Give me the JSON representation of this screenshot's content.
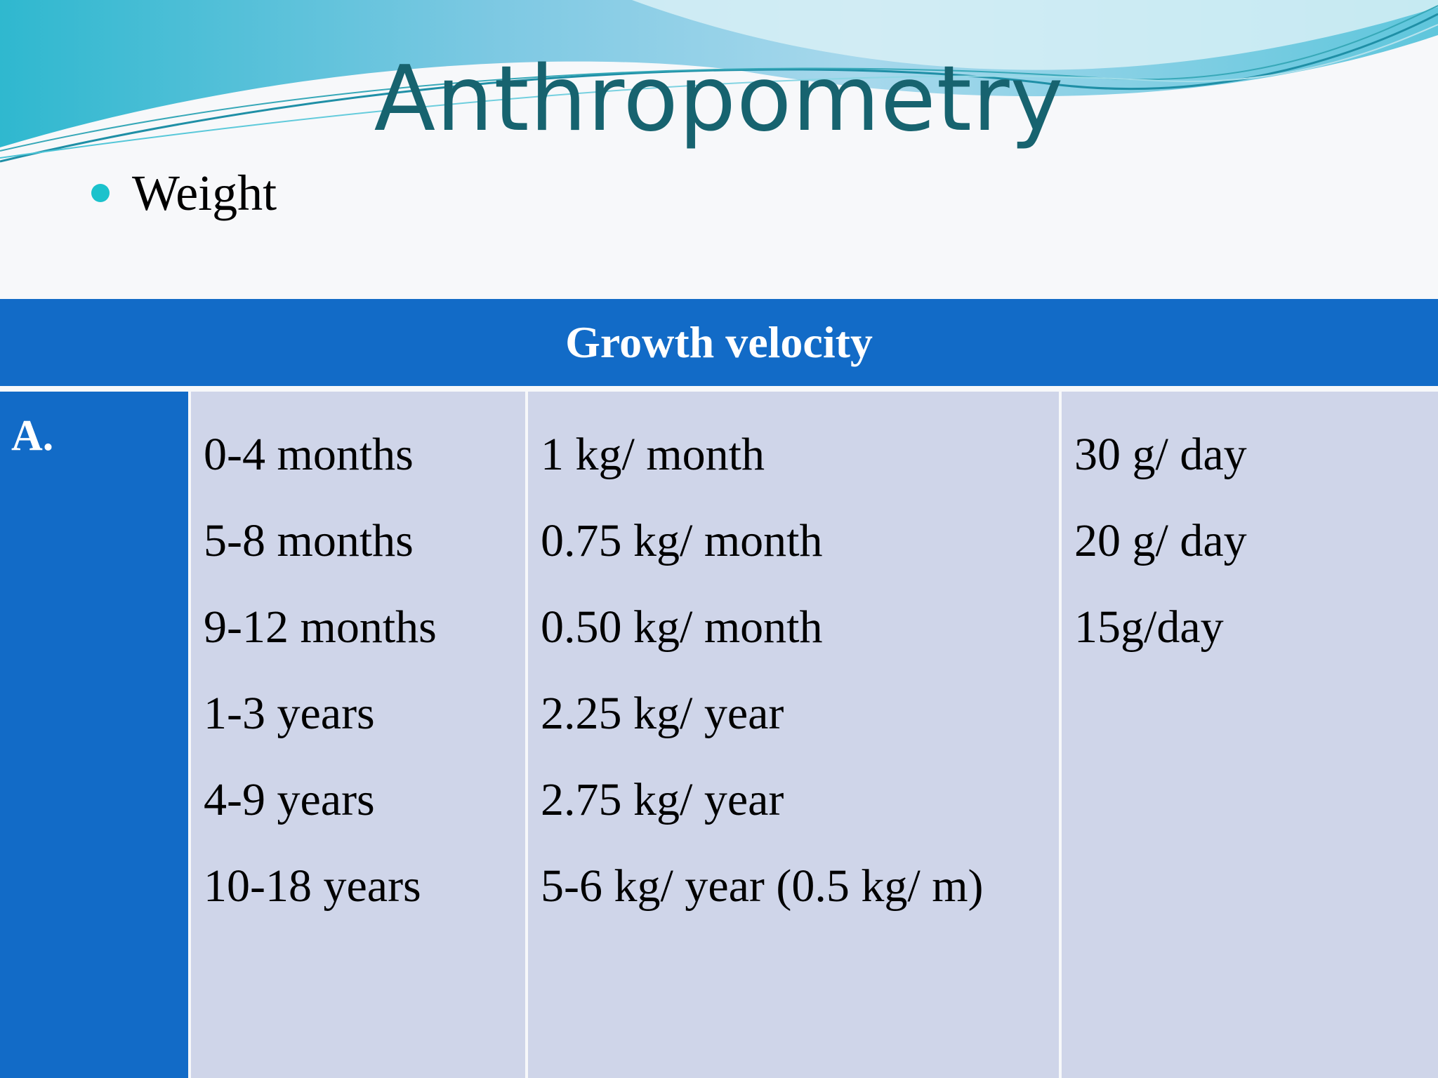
{
  "slide": {
    "title": "Anthropometry",
    "bullet": "Weight"
  },
  "table": {
    "header": "Growth velocity",
    "row_label": "A.",
    "age_groups": [
      "0-4 months",
      "5-8 months",
      "9-12 months",
      "1-3 years",
      "4-9 years",
      "10-18 years"
    ],
    "rates": [
      "1 kg/ month",
      "0.75 kg/ month",
      "0.50 kg/ month",
      "2.25 kg/ year",
      "2.75 kg/ year",
      "5-6 kg/ year (0.5 kg/ m)"
    ],
    "daily": [
      "30 g/ day",
      "20 g/ day",
      "15g/day"
    ]
  },
  "colors": {
    "title": "#17636f",
    "table_header": "#126bc7",
    "table_body": "#cfd5e9",
    "bullet": "#1bc2cc"
  }
}
